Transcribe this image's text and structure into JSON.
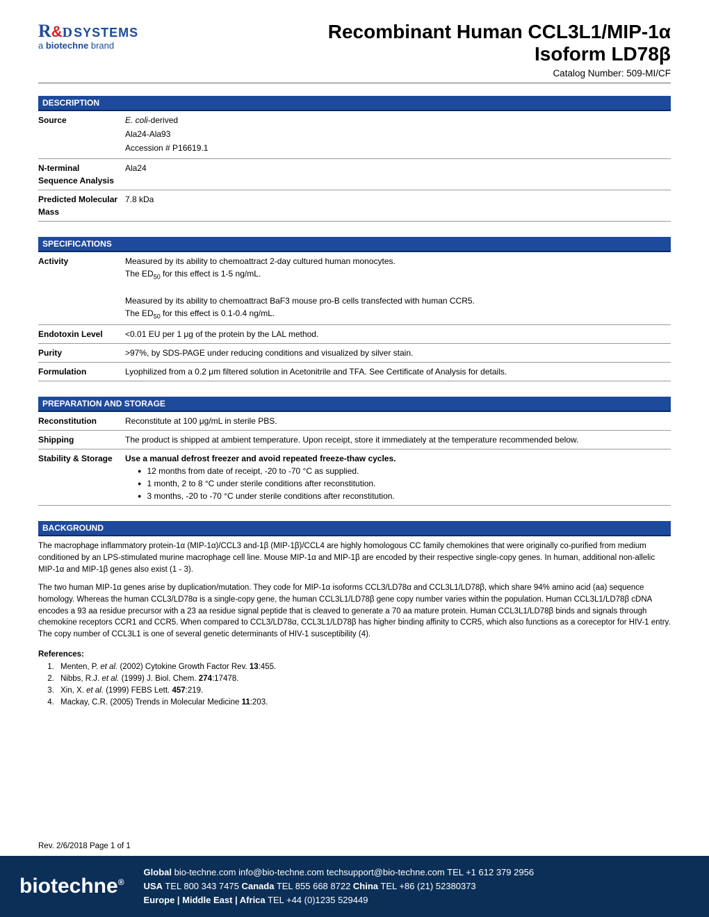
{
  "header": {
    "logo_r": "R",
    "logo_d": "D",
    "logo_systems": "SYSTEMS",
    "logo_sub_a": "a ",
    "logo_sub_bold": "biotechne",
    "logo_sub_brand": " brand",
    "title_line1": "Recombinant Human CCL3L1/MIP-1α",
    "title_line2": "Isoform LD78β",
    "catalog": "Catalog Number:  509-MI/CF"
  },
  "sections": {
    "description": "DESCRIPTION",
    "specifications": "SPECIFICATIONS",
    "preparation": "PREPARATION AND STORAGE",
    "background": "BACKGROUND"
  },
  "description": {
    "rows": [
      {
        "label": "Source",
        "lines": [
          "E. coli-derived",
          "Ala24-Ala93",
          "Accession # P16619.1"
        ],
        "italic_first": true
      },
      {
        "label": "N-terminal Sequence Analysis",
        "lines": [
          "Ala24"
        ]
      },
      {
        "label": "Predicted Molecular Mass",
        "lines": [
          "7.8 kDa"
        ]
      }
    ]
  },
  "specifications": {
    "rows": [
      {
        "label": "Activity",
        "html": "Measured by its ability to chemoattract 2-day cultured human monocytes.<br>The ED<sub>50</sub> for this effect is 1-5 ng/mL.<br><br>Measured by its ability to chemoattract BaF3 mouse pro-B cells transfected with human CCR5.<br>The ED<sub>50</sub> for this effect is 0.1-0.4 ng/mL."
      },
      {
        "label": "Endotoxin Level",
        "html": "<0.01 EU per 1 μg of the protein by the LAL method."
      },
      {
        "label": "Purity",
        "html": ">97%, by SDS-PAGE under reducing conditions and visualized by silver stain."
      },
      {
        "label": "Formulation",
        "html": "Lyophilized from a 0.2 μm filtered solution in Acetonitrile and TFA. See Certificate of Analysis for details."
      }
    ]
  },
  "preparation": {
    "rows": [
      {
        "label": "Reconstitution",
        "html": "Reconstitute at 100 μg/mL in sterile PBS."
      },
      {
        "label": "Shipping",
        "html": "The product is shipped at ambient temperature. Upon receipt, store it immediately at the temperature recommended below."
      },
      {
        "label": "Stability & Storage",
        "html": "<b>Use a manual defrost freezer and avoid repeated freeze-thaw cycles.</b>",
        "bullets": [
          "12 months from date of receipt, -20 to -70 °C as supplied.",
          "1 month, 2 to 8 °C under sterile conditions after reconstitution.",
          "3 months, -20 to -70 °C under sterile conditions after reconstitution."
        ]
      }
    ]
  },
  "background": {
    "paragraphs": [
      "The macrophage inflammatory protein-1α (MIP-1α)/CCL3 and-1β (MIP-1β)/CCL4 are highly homologous CC family chemokines that were originally co-purified from medium conditioned by an LPS-stimulated murine macrophage cell line. Mouse MIP-1α and MIP-1β are encoded by their respective single-copy genes. In human, additional non-allelic MIP-1α and MIP-1β genes also exist (1 - 3).",
      "The two human MIP-1α genes arise by duplication/mutation. They code for MIP-1α isoforms CCL3/LD78α and CCL3L1/LD78β, which share 94% amino acid (aa) sequence homology. Whereas the human CCL3/LD78α is a single-copy gene, the human CCL3L1/LD78β gene copy number varies within the population. Human CCL3L1/LD78β cDNA encodes a 93 aa residue precursor with a 23 aa residue signal peptide that is cleaved to generate a 70 aa mature protein. Human CCL3L1/LD78β binds and signals through chemokine receptors CCR1 and CCR5. When compared to CCL3/LD78α, CCL3L1/LD78β has higher binding affinity to CCR5, which also functions as a coreceptor for HIV-1 entry. The copy number of CCL3L1 is one of several genetic determinants of HIV-1 susceptibility (4)."
    ],
    "refs_title": "References:",
    "refs": [
      "Menten, P. <i>et al.</i> (2002) Cytokine Growth Factor Rev. <b>13</b>:455.",
      "Nibbs, R.J. <i>et al.</i> (1999) J. Biol. Chem. <b>274</b>:17478.",
      "Xin, X. <i>et al.</i> (1999) FEBS Lett. <b>457</b>:219.",
      "Mackay, C.R. (2005) Trends in Molecular Medicine <b>11</b>:203."
    ]
  },
  "footer": {
    "rev": "Rev. 2/6/2018 Page 1 of 1",
    "logo": "biotechne",
    "reg": "®",
    "line1": "<span class='b'>Global</span> bio-techne.com  info@bio-techne.com  techsupport@bio-techne.com  TEL +1 612 379 2956",
    "line2": "<span class='b'>USA</span> TEL 800 343 7475   <span class='b'>Canada</span> TEL 855 668 8722   <span class='b'>China</span> TEL +86 (21) 52380373",
    "line3": "<span class='b'>Europe | Middle East | Africa</span> TEL +44 (0)1235 529449"
  },
  "colors": {
    "brand_blue": "#1e4a9c",
    "footer_bg": "#0b2f57",
    "border": "#999999"
  }
}
